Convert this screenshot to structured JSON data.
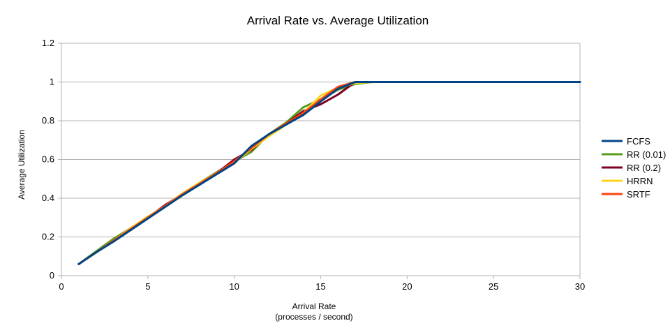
{
  "chart_data": {
    "type": "line",
    "title": "Arrival Rate vs. Average Utilization",
    "xlabel_line1": "Arrival Rate",
    "xlabel_line2": "(processes / second)",
    "ylabel": "Average Utilization",
    "xlim": [
      0,
      30
    ],
    "ylim": [
      0,
      1.2
    ],
    "xticks": [
      0,
      5,
      10,
      15,
      20,
      25,
      30
    ],
    "yticks": [
      0,
      0.2,
      0.4,
      0.6,
      0.8,
      1,
      1.2
    ],
    "ytick_labels": [
      "0",
      "0.2",
      "0.4",
      "0.6",
      "0.8",
      "1",
      "1.2"
    ],
    "grid": true,
    "legend_position": "right",
    "x": [
      1,
      2,
      3,
      4,
      5,
      6,
      7,
      8,
      9,
      10,
      11,
      12,
      13,
      14,
      15,
      16,
      17,
      18,
      19,
      20,
      21,
      22,
      23,
      24,
      25,
      26,
      27,
      28,
      29,
      30
    ],
    "series": [
      {
        "name": "RR (0.01)",
        "color": "#579d1c",
        "values": [
          0.06,
          0.125,
          0.19,
          0.245,
          0.3,
          0.36,
          0.42,
          0.48,
          0.535,
          0.59,
          0.64,
          0.73,
          0.79,
          0.87,
          0.91,
          0.96,
          0.99,
          1,
          1,
          1,
          1,
          1,
          1,
          1,
          1,
          1,
          1,
          1,
          1,
          1
        ]
      },
      {
        "name": "RR (0.2)",
        "color": "#7e0021",
        "values": [
          0.06,
          0.12,
          0.18,
          0.24,
          0.3,
          0.365,
          0.42,
          0.475,
          0.53,
          0.6,
          0.65,
          0.73,
          0.785,
          0.85,
          0.885,
          0.935,
          1,
          1,
          1,
          1,
          1,
          1,
          1,
          1,
          1,
          1,
          1,
          1,
          1,
          1
        ]
      },
      {
        "name": "HRRN",
        "color": "#ffd320",
        "values": [
          0.06,
          0.12,
          0.18,
          0.245,
          0.305,
          0.36,
          0.425,
          0.48,
          0.53,
          0.585,
          0.655,
          0.72,
          0.78,
          0.84,
          0.93,
          0.97,
          0.995,
          1,
          1,
          1,
          1,
          1,
          1,
          1,
          1,
          1,
          1,
          1,
          1,
          1
        ]
      },
      {
        "name": "SRTF",
        "color": "#ff420e",
        "values": [
          0.06,
          0.12,
          0.18,
          0.24,
          0.3,
          0.36,
          0.42,
          0.475,
          0.53,
          0.59,
          0.66,
          0.73,
          0.785,
          0.84,
          0.91,
          0.975,
          1,
          1,
          1,
          1,
          1,
          1,
          1,
          1,
          1,
          1,
          1,
          1,
          1,
          1
        ]
      },
      {
        "name": "FCFS",
        "color": "#004586",
        "values": [
          0.06,
          0.12,
          0.175,
          0.235,
          0.295,
          0.355,
          0.415,
          0.47,
          0.525,
          0.58,
          0.67,
          0.73,
          0.78,
          0.83,
          0.9,
          0.965,
          1,
          1,
          1,
          1,
          1,
          1,
          1,
          1,
          1,
          1,
          1,
          1,
          1,
          1
        ]
      }
    ],
    "legend_order": [
      "FCFS",
      "RR (0.01)",
      "RR (0.2)",
      "HRRN",
      "SRTF"
    ]
  }
}
